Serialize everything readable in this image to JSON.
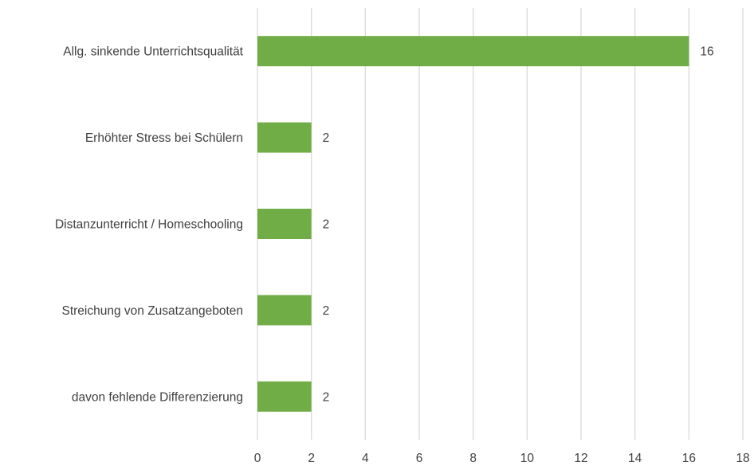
{
  "chart_data": {
    "type": "bar",
    "orientation": "horizontal",
    "title": "",
    "xlabel": "",
    "ylabel": "",
    "categories": [
      "Allg. sinkende Unterrichtsqualität",
      "Erhöhter Stress bei Schülern",
      "Distanzunterricht / Homeschooling",
      "Streichung von Zusatzangeboten",
      "davon fehlende Differenzierung"
    ],
    "values": [
      16,
      2,
      2,
      2,
      2
    ],
    "xlim": [
      0,
      18
    ],
    "xticks": [
      "0",
      "2",
      "4",
      "6",
      "8",
      "10",
      "12",
      "14",
      "16",
      "18"
    ],
    "grid": true,
    "data_labels": true,
    "bar_color": "#70ad47"
  }
}
